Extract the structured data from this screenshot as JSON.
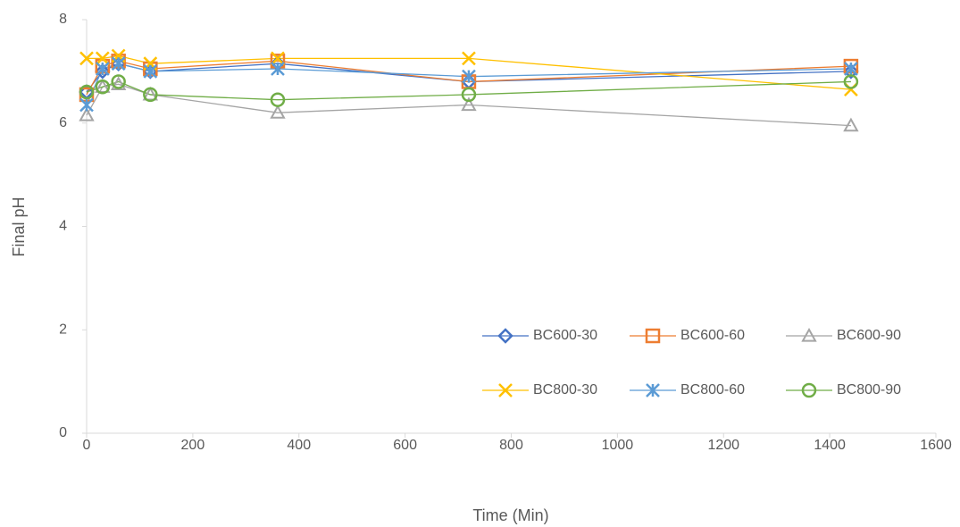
{
  "chart_data": {
    "type": "line",
    "x_label": "Time (Min)",
    "y_label": "Final pH",
    "x": [
      0,
      30,
      60,
      120,
      360,
      720,
      1440
    ],
    "xlim": [
      0,
      1600
    ],
    "xticks": [
      0,
      200,
      400,
      600,
      800,
      1000,
      1200,
      1400,
      1600
    ],
    "ylim": [
      0,
      8
    ],
    "yticks": [
      0,
      2,
      4,
      6,
      8
    ],
    "grid": false,
    "legend_position": "lower right",
    "series": [
      {
        "name": "BC600-30",
        "color": "#4472c4",
        "marker": "diamond",
        "values": [
          6.6,
          7.0,
          7.15,
          7.0,
          7.15,
          6.8,
          7.0
        ]
      },
      {
        "name": "BC600-60",
        "color": "#ed7d31",
        "marker": "square",
        "values": [
          6.55,
          7.1,
          7.2,
          7.05,
          7.2,
          6.8,
          7.1
        ]
      },
      {
        "name": "BC600-90",
        "color": "#a5a5a5",
        "marker": "triangle",
        "values": [
          6.15,
          6.7,
          6.75,
          6.55,
          6.2,
          6.35,
          5.95
        ]
      },
      {
        "name": "BC800-30",
        "color": "#ffc000",
        "marker": "x",
        "values": [
          7.25,
          7.25,
          7.3,
          7.15,
          7.25,
          7.25,
          6.65
        ]
      },
      {
        "name": "BC800-60",
        "color": "#5b9bd5",
        "marker": "star",
        "values": [
          6.35,
          7.05,
          7.15,
          7.0,
          7.05,
          6.9,
          7.05
        ]
      },
      {
        "name": "BC800-90",
        "color": "#70ad47",
        "marker": "circle",
        "values": [
          6.6,
          6.7,
          6.8,
          6.55,
          6.45,
          6.55,
          6.8
        ]
      }
    ]
  }
}
